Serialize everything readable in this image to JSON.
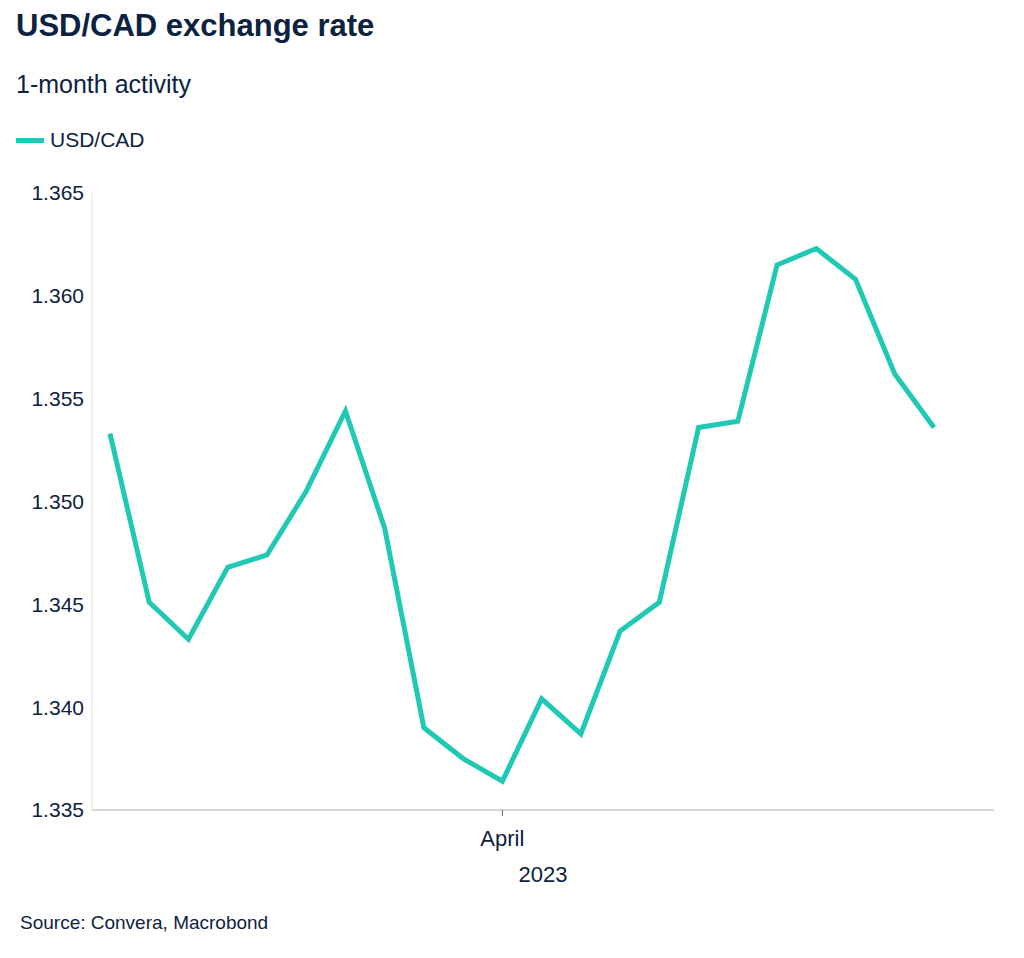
{
  "chart_data": {
    "type": "line",
    "title": "USD/CAD exchange rate",
    "subtitle": "1-month activity",
    "x_label": "2023",
    "source": "Source: Convera, Macrobond",
    "categories": [
      null,
      null,
      null,
      null,
      null,
      null,
      null,
      null,
      null,
      null,
      "April",
      null,
      null,
      null,
      null,
      null,
      null,
      null,
      null,
      null,
      null,
      null
    ],
    "series": [
      {
        "name": "USD/CAD",
        "color": "#1fc9b3",
        "values": [
          1.3533,
          1.3451,
          1.3433,
          1.3468,
          1.3474,
          1.3505,
          1.3544,
          1.3487,
          1.339,
          1.3375,
          1.3364,
          1.3404,
          1.3387,
          1.3437,
          1.3451,
          1.3536,
          1.3539,
          1.3615,
          1.3623,
          1.3608,
          1.3562,
          1.3536
        ]
      }
    ],
    "ylim": [
      1.335,
      1.365
    ],
    "yticks": [
      1.335,
      {
        "value": 1.34,
        "label": "1.340"
      },
      1.345,
      {
        "value": 1.35,
        "label": "1.350"
      },
      1.355,
      {
        "value": 1.36,
        "label": "1.360"
      },
      1.365
    ],
    "grid": false,
    "legend": "top-left"
  }
}
